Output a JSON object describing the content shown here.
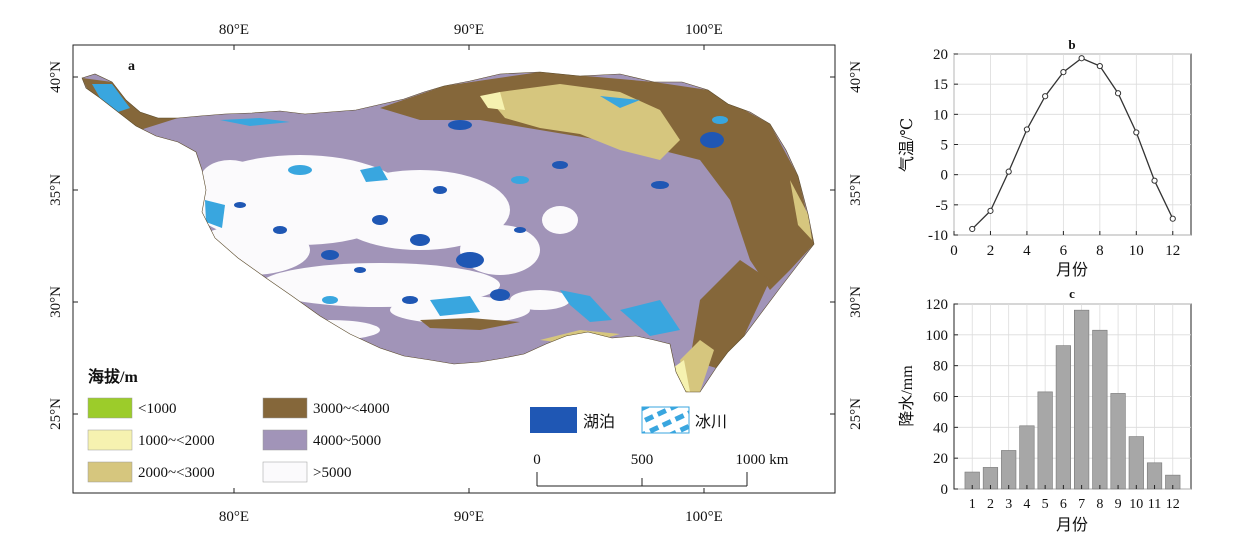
{
  "map": {
    "panel_label": "a",
    "lon_labels_top": [
      "80°E",
      "90°E",
      "100°E"
    ],
    "lon_labels_bottom": [
      "80°E",
      "90°E",
      "100°E"
    ],
    "lat_labels_left": [
      "40°N",
      "35°N",
      "30°N",
      "25°N"
    ],
    "lat_labels_right": [
      "40°N",
      "35°N",
      "30°N",
      "25°N"
    ],
    "elevation_legend": {
      "title": "海拔/m",
      "classes": [
        {
          "label": "<1000",
          "color": "#9ccc2a"
        },
        {
          "label": "1000~<2000",
          "color": "#f6f2b0"
        },
        {
          "label": "2000~<3000",
          "color": "#d6c67e"
        },
        {
          "label": "3000~<4000",
          "color": "#85673a"
        },
        {
          "label": "4000~5000",
          "color": "#a194b8"
        },
        {
          "label": ">5000",
          "color": "#fbfafc"
        }
      ]
    },
    "feature_legend": [
      {
        "label": "湖泊",
        "color": "#1f57b4"
      },
      {
        "label": "冰川",
        "color": "#39a6df"
      }
    ],
    "scale_bar": {
      "ticks": [
        "0",
        "500",
        "1000 km"
      ]
    }
  },
  "chart_data": [
    {
      "type": "line",
      "panel_label": "b",
      "xlabel": "月份",
      "ylabel": "气温/℃",
      "x": [
        1,
        2,
        3,
        4,
        5,
        6,
        7,
        8,
        9,
        10,
        11,
        12
      ],
      "y": [
        -9.0,
        -6.0,
        0.5,
        7.5,
        13.0,
        17.0,
        19.3,
        18.0,
        13.5,
        7.0,
        -1.0,
        -7.3
      ],
      "xlim": [
        0,
        13
      ],
      "ylim": [
        -10,
        20
      ],
      "xticks": [
        "0",
        "2",
        "4",
        "6",
        "8",
        "10",
        "12"
      ],
      "yticks": [
        "-10",
        "-5",
        "0",
        "5",
        "10",
        "15",
        "20"
      ],
      "grid": true
    },
    {
      "type": "bar",
      "panel_label": "c",
      "xlabel": "月份",
      "ylabel": "降水/mm",
      "categories": [
        "1",
        "2",
        "3",
        "4",
        "5",
        "6",
        "7",
        "8",
        "9",
        "10",
        "11",
        "12"
      ],
      "values": [
        11,
        14,
        25,
        41,
        63,
        93,
        116,
        103,
        62,
        34,
        17,
        9
      ],
      "ylim": [
        0,
        120
      ],
      "yticks": [
        "0",
        "20",
        "40",
        "60",
        "80",
        "100",
        "120"
      ],
      "grid": true,
      "bar_color": "#a7a7a7"
    }
  ]
}
